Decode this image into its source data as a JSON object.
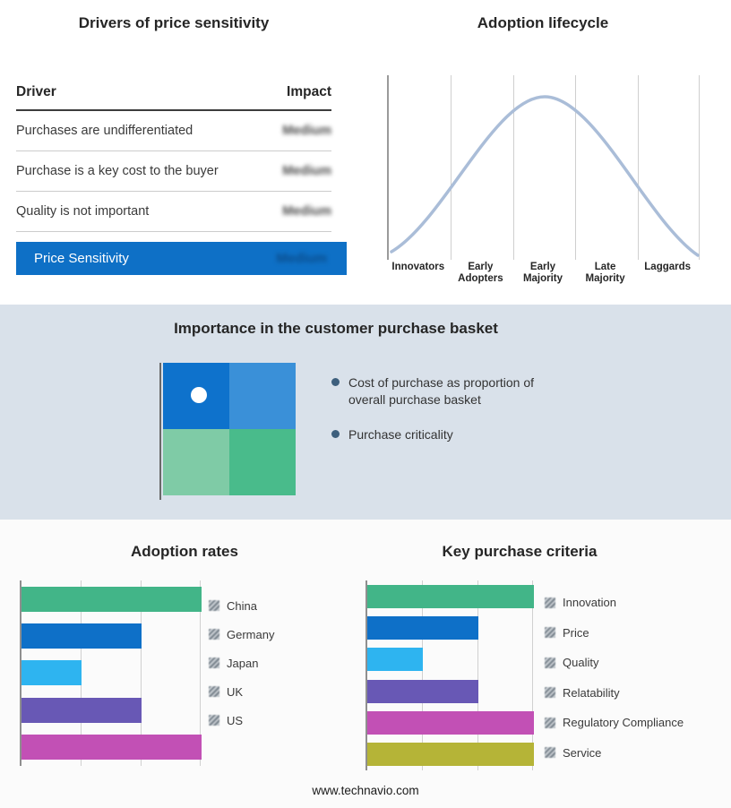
{
  "colors": {
    "highlight_blue": "#0e70c6",
    "band_bg": "#d9e1ea",
    "curve": "#aabdd8"
  },
  "drivers_panel": {
    "title": "Drivers of price sensitivity",
    "header": {
      "driver": "Driver",
      "impact": "Impact"
    },
    "rows": [
      {
        "driver": "Purchases are undifferentiated",
        "impact": "Medium"
      },
      {
        "driver": "Purchase is a key cost to the buyer",
        "impact": "Medium"
      },
      {
        "driver": "Quality is not important",
        "impact": "Medium"
      }
    ],
    "summary": {
      "label": "Price Sensitivity",
      "impact": "Medium"
    }
  },
  "basket_panel": {
    "title": "Importance in the customer purchase basket",
    "bullets": [
      "Cost of purchase as proportion of overall purchase basket",
      "Purchase criticality"
    ],
    "quadrant": {
      "top_left": "#0e72cc",
      "top_right": "#3a90d8",
      "bottom_left": "#7fcba6",
      "bottom_right": "#49bb8b"
    }
  },
  "footer": "www.technavio.com",
  "chart_data": [
    {
      "type": "line",
      "title": "Adoption lifecycle",
      "categories": [
        "Innovators",
        "Early Adopters",
        "Early Majority",
        "Late Majority",
        "Laggards"
      ],
      "values": [
        0.15,
        0.6,
        1.0,
        0.6,
        0.12
      ],
      "ylabel": "",
      "xlabel": "",
      "grid": true,
      "legend_position": "none",
      "note": "bell-shaped adoption curve, unlabeled y axis"
    },
    {
      "type": "bar",
      "title": "Adoption rates",
      "orientation": "horizontal",
      "categories": [
        "China",
        "Germany",
        "Japan",
        "UK",
        "US"
      ],
      "values": [
        3,
        2,
        1,
        2,
        3
      ],
      "xlim": [
        0,
        3
      ],
      "grid": true,
      "tick_labels_hidden": true,
      "colors": [
        "#42b588",
        "#0e70c8",
        "#2eb4f0",
        "#6858b5",
        "#c250b5"
      ]
    },
    {
      "type": "bar",
      "title": "Key purchase criteria",
      "orientation": "horizontal",
      "categories": [
        "Innovation",
        "Price",
        "Quality",
        "Relatability",
        "Regulatory Compliance",
        "Service"
      ],
      "values": [
        3,
        2,
        1,
        2,
        3,
        3
      ],
      "xlim": [
        0,
        3
      ],
      "grid": true,
      "tick_labels_hidden": true,
      "colors": [
        "#42b588",
        "#0e70c8",
        "#2eb4f0",
        "#6858b5",
        "#c250b5",
        "#b5b437"
      ]
    }
  ]
}
